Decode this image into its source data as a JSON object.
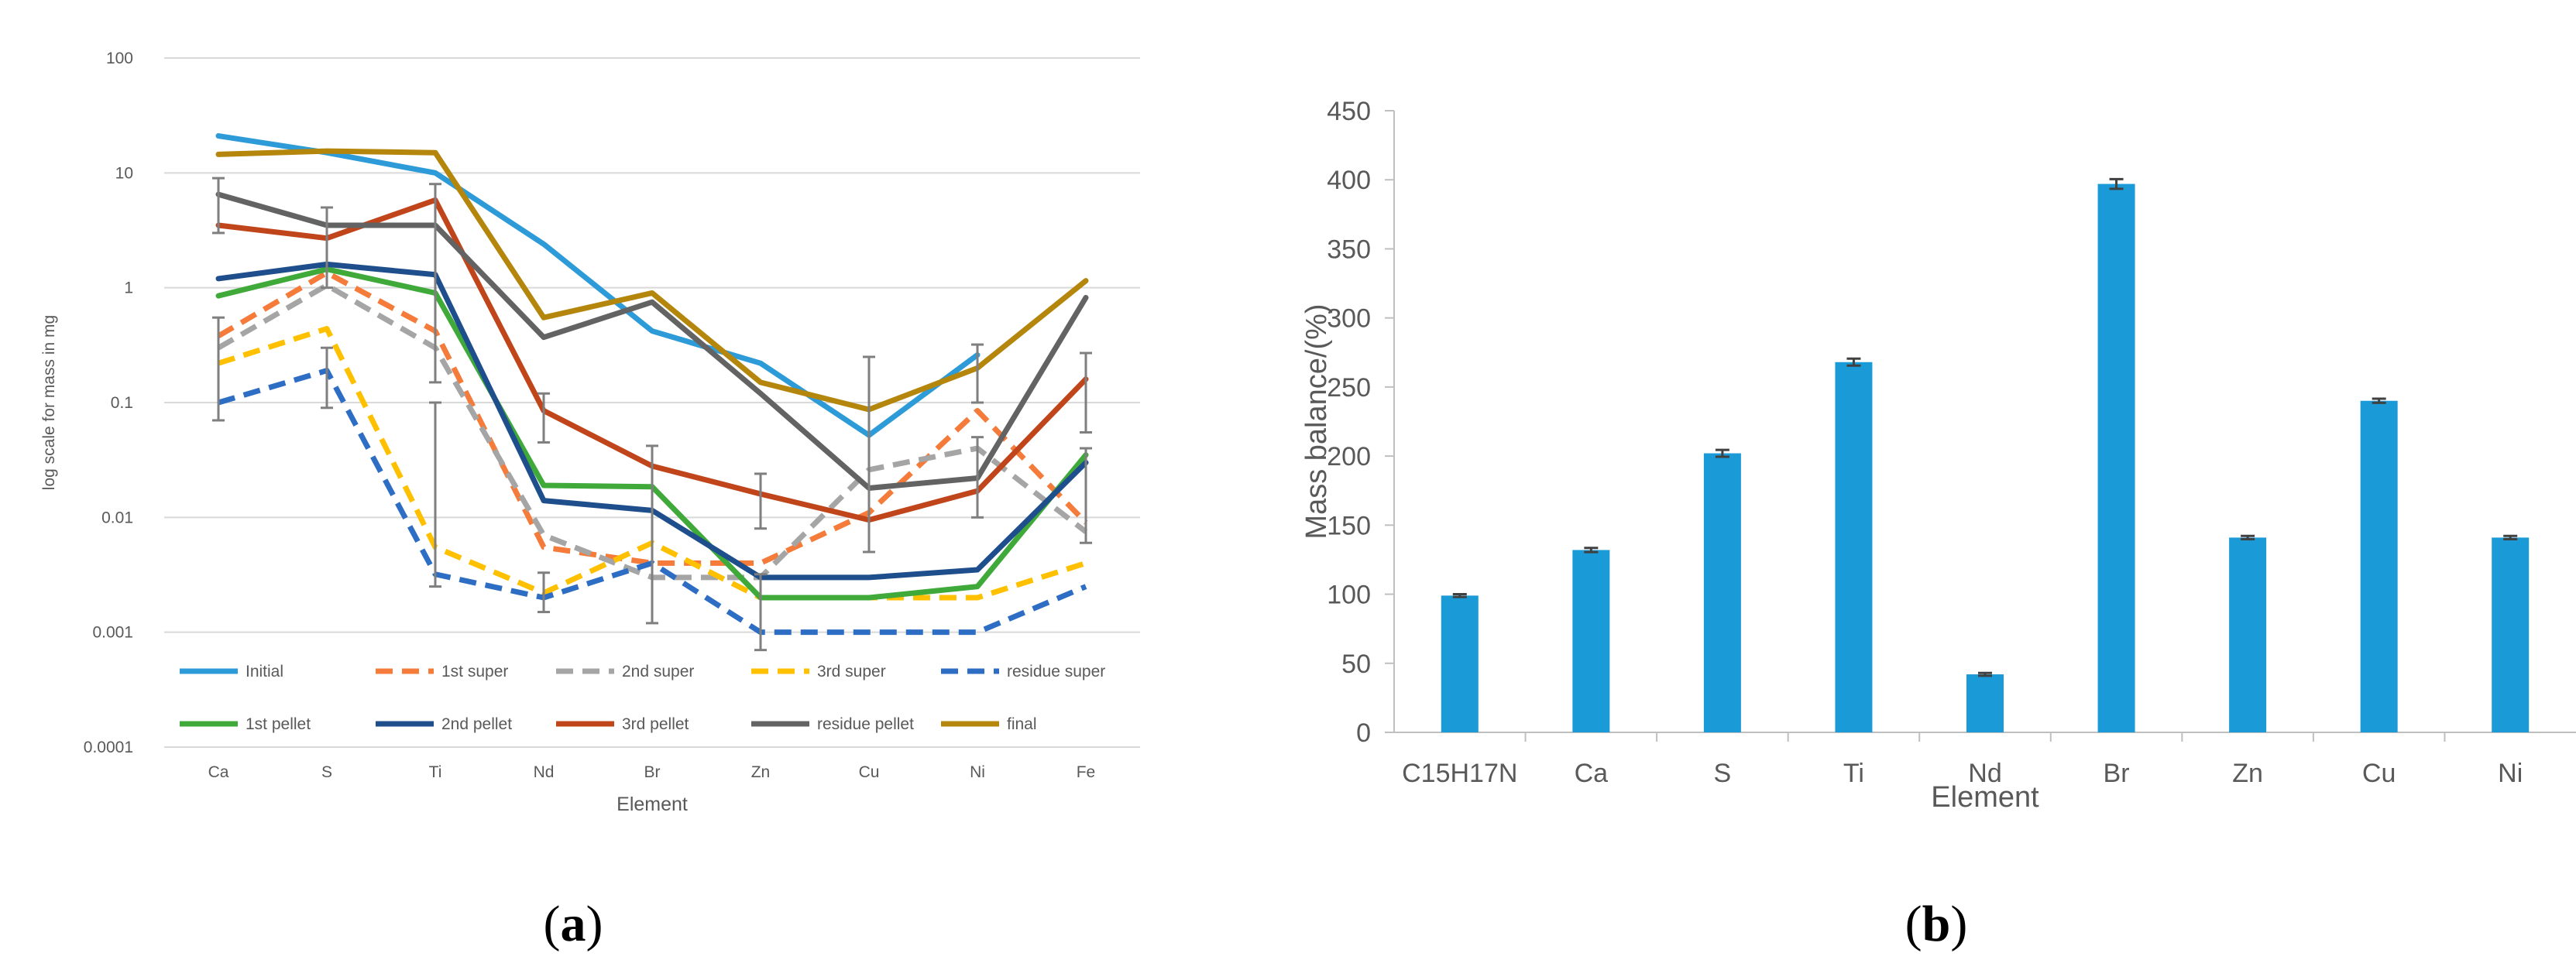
{
  "panels": {
    "a": {
      "caption_open": "(",
      "caption_letter": "a",
      "caption_close": ")"
    },
    "b": {
      "caption_open": "(",
      "caption_letter": "b",
      "caption_close": ")"
    }
  },
  "chart_data": [
    {
      "id": "a",
      "type": "line",
      "yscale": "log",
      "title": "",
      "xlabel": "Element",
      "ylabel": "log scale for mass in mg",
      "ylim": [
        0.0001,
        100
      ],
      "ytick_labels": [
        "0.0001",
        "0.001",
        "0.01",
        "0.1",
        "1",
        "10",
        "100"
      ],
      "ytick_values": [
        0.0001,
        0.001,
        0.01,
        0.1,
        1,
        10,
        100
      ],
      "categories": [
        "Ca",
        "S",
        "Ti",
        "Nd",
        "Br",
        "Zn",
        "Cu",
        "Ni",
        "Fe"
      ],
      "grid": true,
      "legend": "bottom",
      "series": [
        {
          "name": "Initial",
          "color": "#2E9BD9",
          "dash": false,
          "values": [
            21,
            15,
            10,
            2.4,
            0.42,
            0.22,
            0.052,
            0.26,
            null
          ]
        },
        {
          "name": "1st super",
          "color": "#F47B3A",
          "dash": true,
          "values": [
            0.38,
            1.35,
            0.42,
            0.0055,
            0.004,
            0.004,
            0.011,
            0.085,
            0.009
          ]
        },
        {
          "name": "2nd super",
          "color": "#A5A5A5",
          "dash": true,
          "values": [
            0.3,
            1.05,
            0.3,
            0.007,
            0.003,
            0.003,
            0.026,
            0.04,
            0.0075
          ]
        },
        {
          "name": "3rd super",
          "color": "#FFC000",
          "dash": true,
          "values": [
            0.22,
            0.44,
            0.0055,
            0.0022,
            0.006,
            0.002,
            0.002,
            0.002,
            0.004
          ]
        },
        {
          "name": "residue super",
          "color": "#2D6DC4",
          "dash": true,
          "values": [
            0.1,
            0.19,
            0.0032,
            0.002,
            0.004,
            0.001,
            0.001,
            0.001,
            0.0025
          ]
        },
        {
          "name": "1st pellet",
          "color": "#3FAA3A",
          "dash": false,
          "values": [
            0.85,
            1.45,
            0.9,
            0.019,
            0.0185,
            0.002,
            0.002,
            0.0025,
            0.035
          ]
        },
        {
          "name": "2nd pellet",
          "color": "#1F4E8C",
          "dash": false,
          "values": [
            1.2,
            1.6,
            1.3,
            0.014,
            0.0115,
            0.003,
            0.003,
            0.0035,
            0.03
          ]
        },
        {
          "name": "3rd pellet",
          "color": "#C0451B",
          "dash": false,
          "values": [
            3.5,
            2.7,
            5.8,
            0.085,
            0.028,
            0.016,
            0.0095,
            0.017,
            0.16
          ]
        },
        {
          "name": "residue pellet",
          "color": "#636363",
          "dash": false,
          "values": [
            6.5,
            3.5,
            3.5,
            0.37,
            0.75,
            0.12,
            0.018,
            0.022,
            0.82
          ]
        },
        {
          "name": "final",
          "color": "#B5860C",
          "dash": false,
          "values": [
            14.5,
            15.5,
            15,
            0.55,
            0.9,
            0.15,
            0.087,
            0.2,
            1.15
          ]
        }
      ],
      "error_bars": [
        {
          "category": "Ca",
          "low": 0.07,
          "high": 0.55
        },
        {
          "category": "Ca",
          "low": 3.0,
          "high": 9.0
        },
        {
          "category": "S",
          "low": 0.09,
          "high": 0.3
        },
        {
          "category": "S",
          "low": 1.0,
          "high": 5.0
        },
        {
          "category": "Ti",
          "low": 0.0025,
          "high": 0.1
        },
        {
          "category": "Ti",
          "low": 0.15,
          "high": 8.0
        },
        {
          "category": "Nd",
          "low": 0.045,
          "high": 0.12
        },
        {
          "category": "Nd",
          "low": 0.0015,
          "high": 0.0033
        },
        {
          "category": "Br",
          "low": 0.0012,
          "high": 0.042
        },
        {
          "category": "Zn",
          "low": 0.0007,
          "high": 0.0032
        },
        {
          "category": "Zn",
          "low": 0.008,
          "high": 0.024
        },
        {
          "category": "Cu",
          "low": 0.005,
          "high": 0.25
        },
        {
          "category": "Ni",
          "low": 0.01,
          "high": 0.05
        },
        {
          "category": "Ni",
          "low": 0.1,
          "high": 0.32
        },
        {
          "category": "Fe",
          "low": 0.055,
          "high": 0.27
        },
        {
          "category": "Fe",
          "low": 0.006,
          "high": 0.04
        }
      ]
    },
    {
      "id": "b",
      "type": "bar",
      "title": "",
      "xlabel": "Element",
      "ylabel": "Mass balance/(%)",
      "ylim": [
        0,
        450
      ],
      "ytick_labels": [
        "0",
        "50",
        "100",
        "150",
        "200",
        "250",
        "300",
        "350",
        "400",
        "450"
      ],
      "ytick_values": [
        0,
        50,
        100,
        150,
        200,
        250,
        300,
        350,
        400,
        450
      ],
      "categories": [
        "C15H17N",
        "Ca",
        "S",
        "Ti",
        "Nd",
        "Br",
        "Zn",
        "Cu",
        "Ni"
      ],
      "values": [
        99,
        132,
        202,
        268,
        42,
        397,
        141,
        240,
        141
      ],
      "errors": [
        1,
        1.5,
        2.5,
        2.5,
        1,
        3.5,
        1.2,
        1.5,
        1.2
      ],
      "bar_color": "#1A9AD6",
      "grid": false,
      "legend": "none"
    }
  ]
}
